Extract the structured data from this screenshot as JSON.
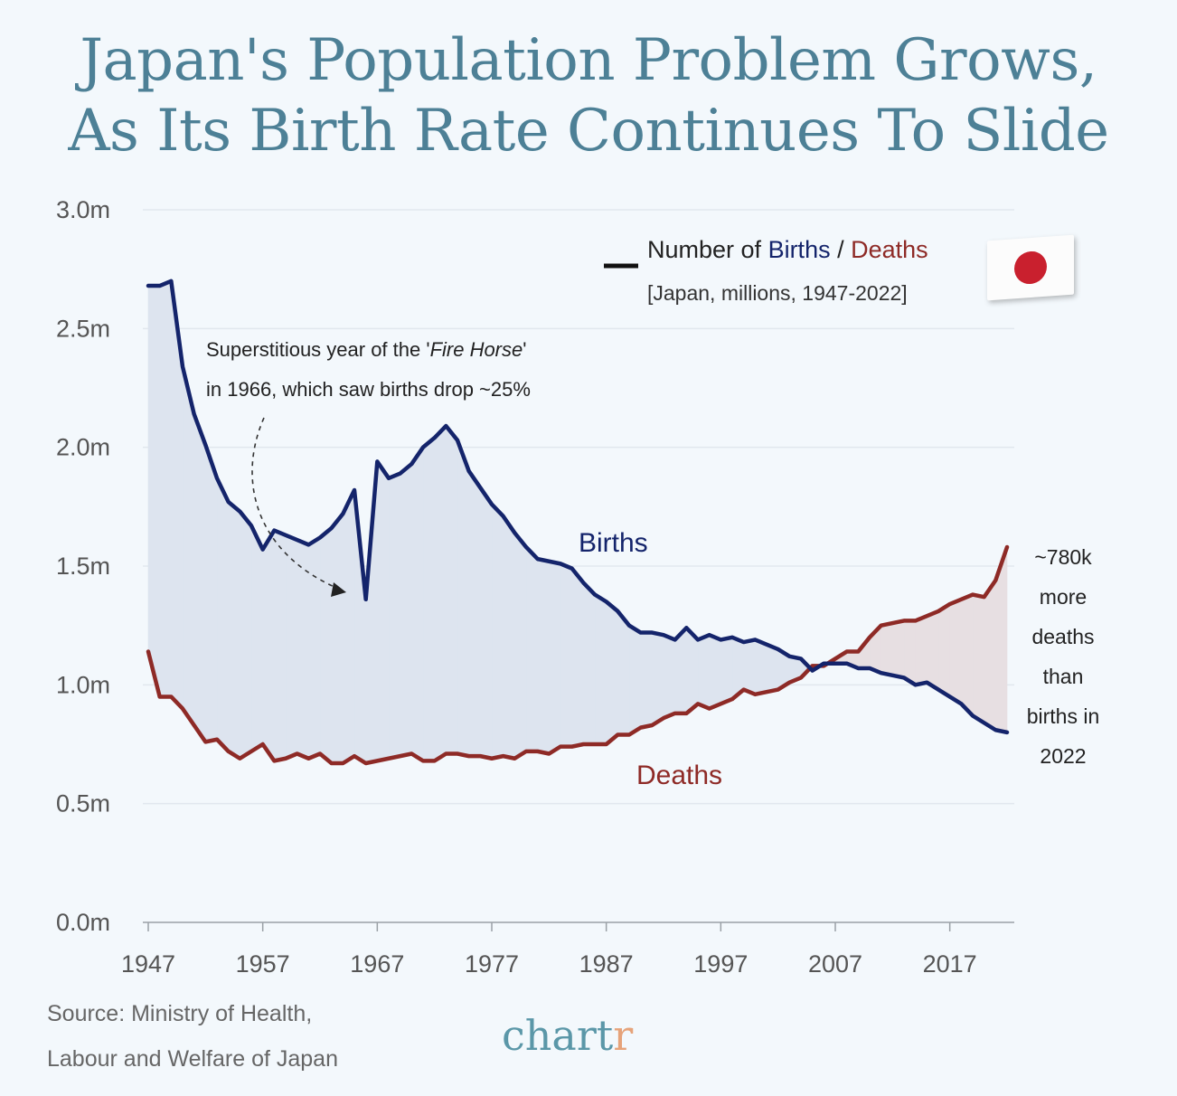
{
  "title_line1": "Japan's Population Problem Grows,",
  "title_line2": "As Its Birth Rate Continues To Slide",
  "colors": {
    "births": "#14246b",
    "deaths": "#8e2a26",
    "births_fill": "#dde4ef",
    "deaths_fill": "#e7dfe2",
    "title": "#4d8096"
  },
  "chart_data": {
    "type": "line",
    "title": "Japan's Population Problem Grows, As Its Birth Rate Continues To Slide",
    "ylim": [
      0,
      3.0
    ],
    "y_ticks": [
      "0.0m",
      "0.5m",
      "1.0m",
      "1.5m",
      "2.0m",
      "2.5m",
      "3.0m"
    ],
    "x_ticks": [
      "1947",
      "1957",
      "1967",
      "1977",
      "1987",
      "1997",
      "2007",
      "2017"
    ],
    "x_range": [
      1947,
      2022
    ],
    "grid": "horizontal",
    "legend": {
      "title_prefix": "Number of ",
      "births": "Births",
      "slash": " / ",
      "deaths": "Deaths",
      "subtitle": "[Japan, millions, 1947-2022]",
      "placement": "top-right"
    },
    "series": [
      {
        "name": "Births",
        "x": [
          1947,
          1948,
          1949,
          1950,
          1951,
          1952,
          1953,
          1954,
          1955,
          1956,
          1957,
          1958,
          1959,
          1960,
          1961,
          1962,
          1963,
          1964,
          1965,
          1966,
          1967,
          1968,
          1969,
          1970,
          1971,
          1972,
          1973,
          1974,
          1975,
          1976,
          1977,
          1978,
          1979,
          1980,
          1981,
          1982,
          1983,
          1984,
          1985,
          1986,
          1987,
          1988,
          1989,
          1990,
          1991,
          1992,
          1993,
          1994,
          1995,
          1996,
          1997,
          1998,
          1999,
          2000,
          2001,
          2002,
          2003,
          2004,
          2005,
          2006,
          2007,
          2008,
          2009,
          2010,
          2011,
          2012,
          2013,
          2014,
          2015,
          2016,
          2017,
          2018,
          2019,
          2020,
          2021,
          2022
        ],
        "values": [
          2.68,
          2.68,
          2.7,
          2.34,
          2.14,
          2.01,
          1.87,
          1.77,
          1.73,
          1.67,
          1.57,
          1.65,
          1.63,
          1.61,
          1.59,
          1.62,
          1.66,
          1.72,
          1.82,
          1.36,
          1.94,
          1.87,
          1.89,
          1.93,
          2.0,
          2.04,
          2.09,
          2.03,
          1.9,
          1.83,
          1.76,
          1.71,
          1.64,
          1.58,
          1.53,
          1.52,
          1.51,
          1.49,
          1.43,
          1.38,
          1.35,
          1.31,
          1.25,
          1.22,
          1.22,
          1.21,
          1.19,
          1.24,
          1.19,
          1.21,
          1.19,
          1.2,
          1.18,
          1.19,
          1.17,
          1.15,
          1.12,
          1.11,
          1.06,
          1.09,
          1.09,
          1.09,
          1.07,
          1.07,
          1.05,
          1.04,
          1.03,
          1.0,
          1.01,
          0.98,
          0.95,
          0.92,
          0.87,
          0.84,
          0.81,
          0.8
        ]
      },
      {
        "name": "Deaths",
        "x": [
          1947,
          1948,
          1949,
          1950,
          1951,
          1952,
          1953,
          1954,
          1955,
          1956,
          1957,
          1958,
          1959,
          1960,
          1961,
          1962,
          1963,
          1964,
          1965,
          1966,
          1967,
          1968,
          1969,
          1970,
          1971,
          1972,
          1973,
          1974,
          1975,
          1976,
          1977,
          1978,
          1979,
          1980,
          1981,
          1982,
          1983,
          1984,
          1985,
          1986,
          1987,
          1988,
          1989,
          1990,
          1991,
          1992,
          1993,
          1994,
          1995,
          1996,
          1997,
          1998,
          1999,
          2000,
          2001,
          2002,
          2003,
          2004,
          2005,
          2006,
          2007,
          2008,
          2009,
          2010,
          2011,
          2012,
          2013,
          2014,
          2015,
          2016,
          2017,
          2018,
          2019,
          2020,
          2021,
          2022
        ],
        "values": [
          1.14,
          0.95,
          0.95,
          0.9,
          0.83,
          0.76,
          0.77,
          0.72,
          0.69,
          0.72,
          0.75,
          0.68,
          0.69,
          0.71,
          0.69,
          0.71,
          0.67,
          0.67,
          0.7,
          0.67,
          0.68,
          0.69,
          0.7,
          0.71,
          0.68,
          0.68,
          0.71,
          0.71,
          0.7,
          0.7,
          0.69,
          0.7,
          0.69,
          0.72,
          0.72,
          0.71,
          0.74,
          0.74,
          0.75,
          0.75,
          0.75,
          0.79,
          0.79,
          0.82,
          0.83,
          0.86,
          0.88,
          0.88,
          0.92,
          0.9,
          0.92,
          0.94,
          0.98,
          0.96,
          0.97,
          0.98,
          1.01,
          1.03,
          1.08,
          1.08,
          1.11,
          1.14,
          1.14,
          1.2,
          1.25,
          1.26,
          1.27,
          1.27,
          1.29,
          1.31,
          1.34,
          1.36,
          1.38,
          1.37,
          1.44,
          1.58
        ]
      }
    ],
    "annotations": {
      "fire_horse_line1": "Superstitious year of the '",
      "fire_horse_italic": "Fire Horse",
      "fire_horse_line1_end": "'",
      "fire_horse_line2": "in 1966, which saw births drop ~25%",
      "births_label": "Births",
      "deaths_label": "Deaths",
      "gap_note": [
        "~780k",
        "more",
        "deaths",
        "than",
        "births in",
        "2022"
      ]
    }
  },
  "footer": {
    "source_line1": "Source: Ministry of Health,",
    "source_line2": "Labour and Welfare of Japan",
    "brand_main": "chart",
    "brand_accent": "r"
  }
}
